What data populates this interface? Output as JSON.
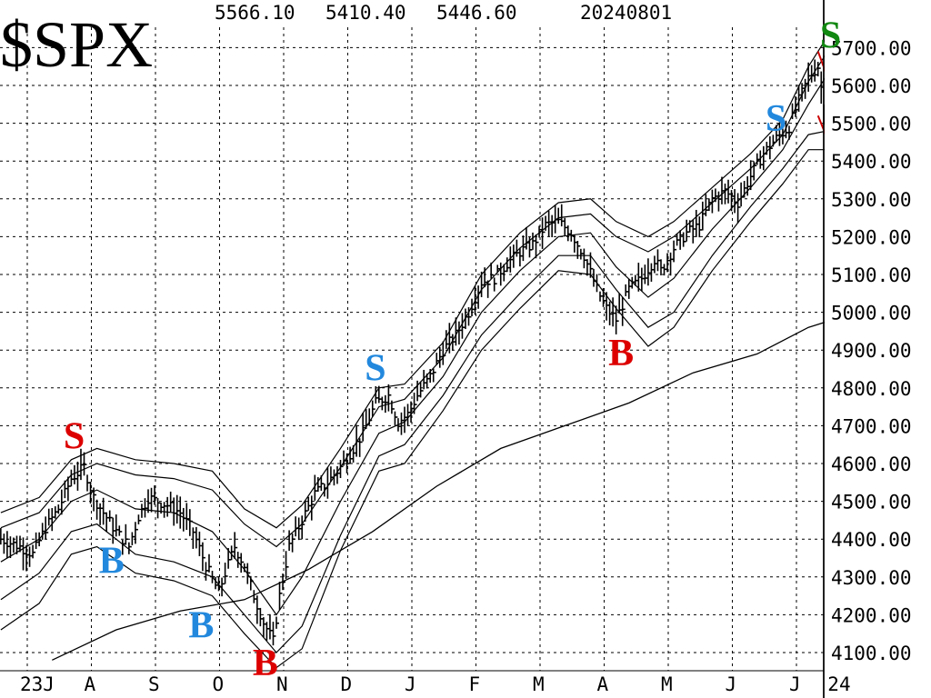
{
  "ticker": "$SPX",
  "quote": {
    "high": "5566.10",
    "low": "5410.40",
    "close": "5446.60",
    "date": "20240801"
  },
  "chart_data": {
    "type": "line",
    "title": "$SPX",
    "ylim": [
      4060,
      5760
    ],
    "grid": true,
    "y_ticks": [
      "4100.00",
      "4200.00",
      "4300.00",
      "4400.00",
      "4500.00",
      "4600.00",
      "4700.00",
      "4800.00",
      "4900.00",
      "5000.00",
      "5100.00",
      "5200.00",
      "5300.00",
      "5400.00",
      "5500.00",
      "5600.00",
      "5700.00"
    ],
    "x_labels": [
      {
        "label": "23J",
        "t": 0.0
      },
      {
        "label": "A",
        "t": 1.0
      },
      {
        "label": "S",
        "t": 2.0
      },
      {
        "label": "O",
        "t": 3.0
      },
      {
        "label": "N",
        "t": 4.0
      },
      {
        "label": "D",
        "t": 5.0
      },
      {
        "label": "J",
        "t": 6.0
      },
      {
        "label": "F",
        "t": 7.0
      },
      {
        "label": "M",
        "t": 8.0
      },
      {
        "label": "A",
        "t": 9.0
      },
      {
        "label": "M",
        "t": 10.0
      },
      {
        "label": "J",
        "t": 11.0
      },
      {
        "label": "J",
        "t": 12.0
      },
      {
        "label": "24",
        "t": 12.6
      }
    ],
    "price": [
      [
        -0.3,
        4400
      ],
      [
        0.0,
        4380
      ],
      [
        0.2,
        4360
      ],
      [
        0.4,
        4430
      ],
      [
        0.6,
        4480
      ],
      [
        0.8,
        4560
      ],
      [
        1.0,
        4590
      ],
      [
        1.15,
        4510
      ],
      [
        1.3,
        4470
      ],
      [
        1.5,
        4420
      ],
      [
        1.7,
        4380
      ],
      [
        1.85,
        4460
      ],
      [
        2.0,
        4510
      ],
      [
        2.15,
        4500
      ],
      [
        2.3,
        4490
      ],
      [
        2.5,
        4470
      ],
      [
        2.7,
        4420
      ],
      [
        2.9,
        4330
      ],
      [
        3.1,
        4260
      ],
      [
        3.2,
        4310
      ],
      [
        3.35,
        4380
      ],
      [
        3.5,
        4330
      ],
      [
        3.65,
        4250
      ],
      [
        3.8,
        4180
      ],
      [
        3.95,
        4130
      ],
      [
        4.05,
        4250
      ],
      [
        4.2,
        4380
      ],
      [
        4.4,
        4450
      ],
      [
        4.6,
        4520
      ],
      [
        4.8,
        4550
      ],
      [
        5.0,
        4590
      ],
      [
        5.2,
        4640
      ],
      [
        5.35,
        4680
      ],
      [
        5.55,
        4760
      ],
      [
        5.75,
        4780
      ],
      [
        5.9,
        4710
      ],
      [
        6.05,
        4730
      ],
      [
        6.2,
        4780
      ],
      [
        6.4,
        4830
      ],
      [
        6.6,
        4900
      ],
      [
        6.8,
        4940
      ],
      [
        7.0,
        5000
      ],
      [
        7.2,
        5080
      ],
      [
        7.4,
        5090
      ],
      [
        7.6,
        5130
      ],
      [
        7.8,
        5160
      ],
      [
        8.0,
        5180
      ],
      [
        8.2,
        5230
      ],
      [
        8.4,
        5240
      ],
      [
        8.6,
        5210
      ],
      [
        8.8,
        5150
      ],
      [
        9.0,
        5060
      ],
      [
        9.15,
        5010
      ],
      [
        9.3,
        4980
      ],
      [
        9.5,
        5060
      ],
      [
        9.7,
        5090
      ],
      [
        9.9,
        5140
      ],
      [
        10.0,
        5110
      ],
      [
        10.2,
        5170
      ],
      [
        10.4,
        5210
      ],
      [
        10.6,
        5230
      ],
      [
        10.8,
        5300
      ],
      [
        11.0,
        5320
      ],
      [
        11.2,
        5290
      ],
      [
        11.4,
        5360
      ],
      [
        11.6,
        5420
      ],
      [
        11.8,
        5460
      ],
      [
        12.0,
        5490
      ],
      [
        12.15,
        5560
      ],
      [
        12.3,
        5620
      ],
      [
        12.45,
        5650
      ],
      [
        12.55,
        5540
      ],
      [
        12.65,
        5570
      ],
      [
        12.75,
        5500
      ],
      [
        12.85,
        5460
      ],
      [
        12.95,
        5420
      ],
      [
        13.05,
        5446
      ]
    ],
    "upper_band_outer": [
      [
        -0.3,
        4470
      ],
      [
        0.3,
        4510
      ],
      [
        0.8,
        4610
      ],
      [
        1.2,
        4640
      ],
      [
        1.8,
        4610
      ],
      [
        2.4,
        4600
      ],
      [
        3.0,
        4580
      ],
      [
        3.5,
        4480
      ],
      [
        4.0,
        4430
      ],
      [
        4.4,
        4490
      ],
      [
        5.0,
        4640
      ],
      [
        5.6,
        4800
      ],
      [
        6.0,
        4810
      ],
      [
        6.6,
        4920
      ],
      [
        7.2,
        5100
      ],
      [
        7.8,
        5210
      ],
      [
        8.4,
        5290
      ],
      [
        8.9,
        5300
      ],
      [
        9.3,
        5240
      ],
      [
        9.8,
        5200
      ],
      [
        10.2,
        5240
      ],
      [
        10.8,
        5330
      ],
      [
        11.4,
        5420
      ],
      [
        11.9,
        5510
      ],
      [
        12.3,
        5650
      ],
      [
        12.6,
        5730
      ],
      [
        13.05,
        5750
      ]
    ],
    "upper_band_inner": [
      [
        -0.3,
        4430
      ],
      [
        0.3,
        4470
      ],
      [
        0.8,
        4570
      ],
      [
        1.2,
        4600
      ],
      [
        1.8,
        4570
      ],
      [
        2.4,
        4560
      ],
      [
        3.0,
        4530
      ],
      [
        3.5,
        4440
      ],
      [
        4.0,
        4380
      ],
      [
        4.4,
        4440
      ],
      [
        5.0,
        4590
      ],
      [
        5.6,
        4750
      ],
      [
        6.0,
        4770
      ],
      [
        6.6,
        4880
      ],
      [
        7.2,
        5060
      ],
      [
        7.8,
        5170
      ],
      [
        8.4,
        5250
      ],
      [
        8.9,
        5260
      ],
      [
        9.3,
        5200
      ],
      [
        9.8,
        5160
      ],
      [
        10.2,
        5200
      ],
      [
        10.8,
        5290
      ],
      [
        11.4,
        5380
      ],
      [
        11.9,
        5470
      ],
      [
        12.3,
        5610
      ],
      [
        12.6,
        5690
      ],
      [
        13.05,
        5700
      ]
    ],
    "mid_line": [
      [
        -0.3,
        4340
      ],
      [
        0.3,
        4400
      ],
      [
        0.8,
        4500
      ],
      [
        1.2,
        4530
      ],
      [
        1.8,
        4480
      ],
      [
        2.4,
        4470
      ],
      [
        3.0,
        4420
      ],
      [
        3.5,
        4320
      ],
      [
        4.0,
        4200
      ],
      [
        4.4,
        4300
      ],
      [
        5.0,
        4500
      ],
      [
        5.6,
        4680
      ],
      [
        6.0,
        4710
      ],
      [
        6.6,
        4830
      ],
      [
        7.2,
        5000
      ],
      [
        7.8,
        5110
      ],
      [
        8.4,
        5200
      ],
      [
        8.9,
        5210
      ],
      [
        9.3,
        5120
      ],
      [
        9.8,
        5040
      ],
      [
        10.2,
        5090
      ],
      [
        10.8,
        5220
      ],
      [
        11.4,
        5330
      ],
      [
        11.9,
        5430
      ],
      [
        12.3,
        5550
      ],
      [
        12.6,
        5630
      ],
      [
        13.05,
        5600
      ]
    ],
    "lower_band_inner": [
      [
        -0.3,
        4240
      ],
      [
        0.3,
        4310
      ],
      [
        0.8,
        4420
      ],
      [
        1.2,
        4440
      ],
      [
        1.8,
        4360
      ],
      [
        2.4,
        4340
      ],
      [
        3.0,
        4300
      ],
      [
        3.5,
        4200
      ],
      [
        4.0,
        4100
      ],
      [
        4.4,
        4170
      ],
      [
        5.0,
        4410
      ],
      [
        5.6,
        4620
      ],
      [
        6.0,
        4650
      ],
      [
        6.6,
        4780
      ],
      [
        7.2,
        4940
      ],
      [
        7.8,
        5050
      ],
      [
        8.4,
        5150
      ],
      [
        8.9,
        5150
      ],
      [
        9.3,
        5060
      ],
      [
        9.8,
        4960
      ],
      [
        10.2,
        5000
      ],
      [
        10.8,
        5150
      ],
      [
        11.4,
        5280
      ],
      [
        11.9,
        5380
      ],
      [
        12.3,
        5470
      ],
      [
        12.6,
        5480
      ],
      [
        13.05,
        5370
      ]
    ],
    "lower_band_outer": [
      [
        -0.3,
        4160
      ],
      [
        0.3,
        4230
      ],
      [
        0.8,
        4360
      ],
      [
        1.2,
        4380
      ],
      [
        1.8,
        4310
      ],
      [
        2.4,
        4290
      ],
      [
        3.0,
        4250
      ],
      [
        3.5,
        4150
      ],
      [
        4.0,
        4060
      ],
      [
        4.4,
        4110
      ],
      [
        5.0,
        4370
      ],
      [
        5.6,
        4580
      ],
      [
        6.0,
        4600
      ],
      [
        6.6,
        4740
      ],
      [
        7.2,
        4900
      ],
      [
        7.8,
        5010
      ],
      [
        8.4,
        5110
      ],
      [
        8.9,
        5100
      ],
      [
        9.3,
        5010
      ],
      [
        9.8,
        4910
      ],
      [
        10.2,
        4960
      ],
      [
        10.8,
        5110
      ],
      [
        11.4,
        5240
      ],
      [
        11.9,
        5340
      ],
      [
        12.3,
        5430
      ],
      [
        12.6,
        5430
      ],
      [
        13.05,
        5320
      ]
    ],
    "ma200": [
      [
        0.5,
        4080
      ],
      [
        1.5,
        4160
      ],
      [
        2.5,
        4210
      ],
      [
        3.5,
        4240
      ],
      [
        4.5,
        4320
      ],
      [
        5.5,
        4420
      ],
      [
        6.5,
        4540
      ],
      [
        7.5,
        4640
      ],
      [
        8.5,
        4700
      ],
      [
        9.5,
        4760
      ],
      [
        10.5,
        4840
      ],
      [
        11.5,
        4890
      ],
      [
        12.3,
        4960
      ],
      [
        13.05,
        5000
      ]
    ],
    "trendlines": [
      {
        "color": "#cc0000",
        "points": [
          [
            12.45,
            5690
          ],
          [
            13.1,
            5390
          ]
        ]
      },
      {
        "color": "#cc0000",
        "points": [
          [
            12.45,
            5520
          ],
          [
            12.95,
            5310
          ]
        ]
      }
    ],
    "annotations": [
      {
        "text": "S",
        "color": "#dd0000",
        "t": 0.85,
        "v": 4640
      },
      {
        "text": "B",
        "color": "#2288dd",
        "t": 1.4,
        "v": 4310
      },
      {
        "text": "B",
        "color": "#2288dd",
        "t": 2.8,
        "v": 4140
      },
      {
        "text": "B",
        "color": "#dd0000",
        "t": 3.8,
        "v": 4040
      },
      {
        "text": "S",
        "color": "#2288dd",
        "t": 5.55,
        "v": 4820
      },
      {
        "text": "B",
        "color": "#dd0000",
        "t": 9.35,
        "v": 4860
      },
      {
        "text": "S",
        "color": "#2288dd",
        "t": 11.8,
        "v": 5480
      },
      {
        "text": "S",
        "color": "#118811",
        "t": 12.65,
        "v": 5700
      }
    ]
  }
}
